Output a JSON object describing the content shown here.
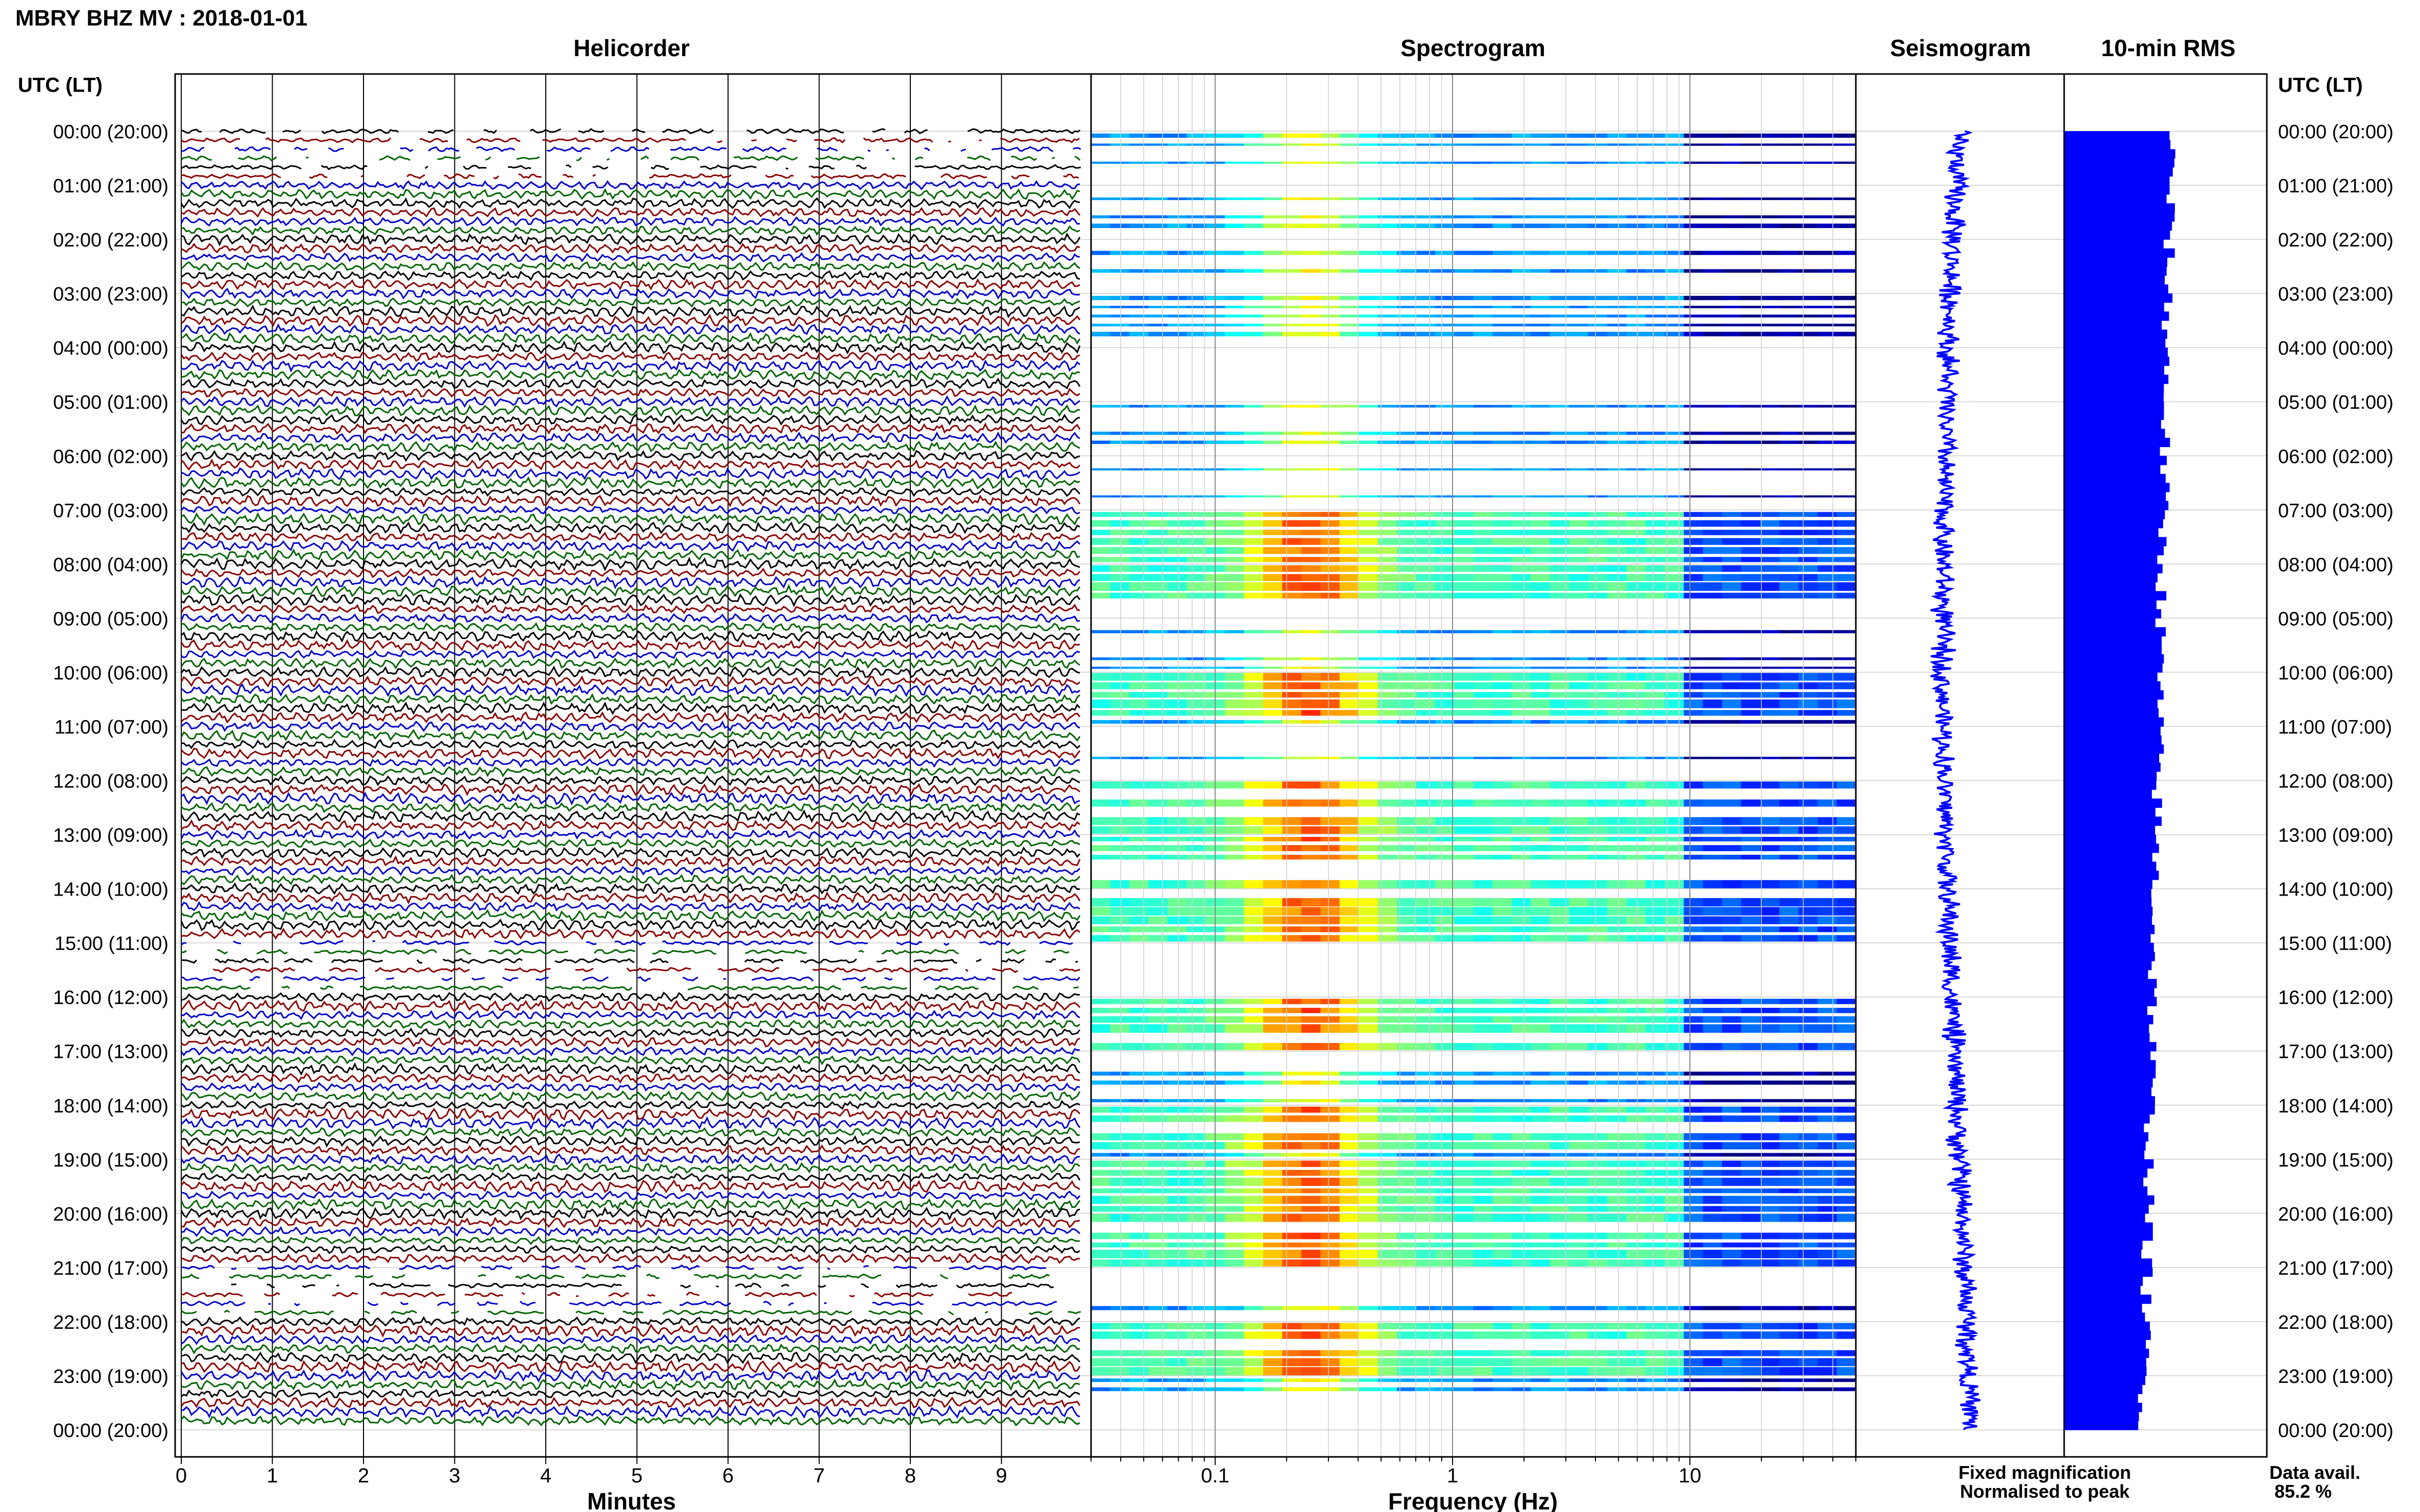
{
  "title": "MBRY BHZ MV : 2018-01-01",
  "panels": {
    "helicorder": "Helicorder",
    "spectrogram": "Spectrogram",
    "seismogram": "Seismogram",
    "rms": "10-min RMS"
  },
  "time_axis_title": "UTC (LT)",
  "time_labels": [
    "00:00 (20:00)",
    "01:00 (21:00)",
    "02:00 (22:00)",
    "03:00 (23:00)",
    "04:00 (00:00)",
    "05:00 (01:00)",
    "06:00 (02:00)",
    "07:00 (03:00)",
    "08:00 (04:00)",
    "09:00 (05:00)",
    "10:00 (06:00)",
    "11:00 (07:00)",
    "12:00 (08:00)",
    "13:00 (09:00)",
    "14:00 (10:00)",
    "15:00 (11:00)",
    "16:00 (12:00)",
    "17:00 (13:00)",
    "18:00 (14:00)",
    "19:00 (15:00)",
    "20:00 (16:00)",
    "21:00 (17:00)",
    "22:00 (18:00)",
    "23:00 (19:00)",
    "00:00 (20:00)"
  ],
  "helicorder_xticks": [
    "0",
    "1",
    "2",
    "3",
    "4",
    "5",
    "6",
    "7",
    "8",
    "9"
  ],
  "helicorder_xlabel": "Minutes",
  "spectrogram_xticks": [
    "0.1",
    "1",
    "10"
  ],
  "spectrogram_xlabel": "Frequency (Hz)",
  "legend": {
    "fixed": "Fixed magnification",
    "normalised": "Normalised to peak",
    "fixed_color": "#1a1aff",
    "normalised_color": "#ff1a1a"
  },
  "data_avail": {
    "label": "Data avail.",
    "value": "85.2 %"
  },
  "colors": {
    "trace_cycle": [
      "#000000",
      "#8b0000",
      "#0000cc",
      "#006400"
    ],
    "rms_bar": "#0000ff",
    "seismogram": "#0000ff"
  },
  "chart_data": [
    {
      "type": "line",
      "name": "Helicorder",
      "x_unit": "minutes",
      "xlim": [
        0,
        10
      ],
      "rows_per_hour": 6,
      "hours": 24
    },
    {
      "type": "heatmap",
      "name": "Spectrogram",
      "x_scale": "log",
      "xlim": [
        0.03,
        50
      ],
      "colormap": "jet",
      "energetic_hours": [
        7,
        8,
        10,
        12,
        13,
        14,
        16,
        18,
        19,
        20,
        22
      ]
    },
    {
      "type": "line",
      "name": "Seismogram"
    },
    {
      "type": "bar",
      "name": "10-min RMS",
      "orientation": "horizontal"
    }
  ]
}
